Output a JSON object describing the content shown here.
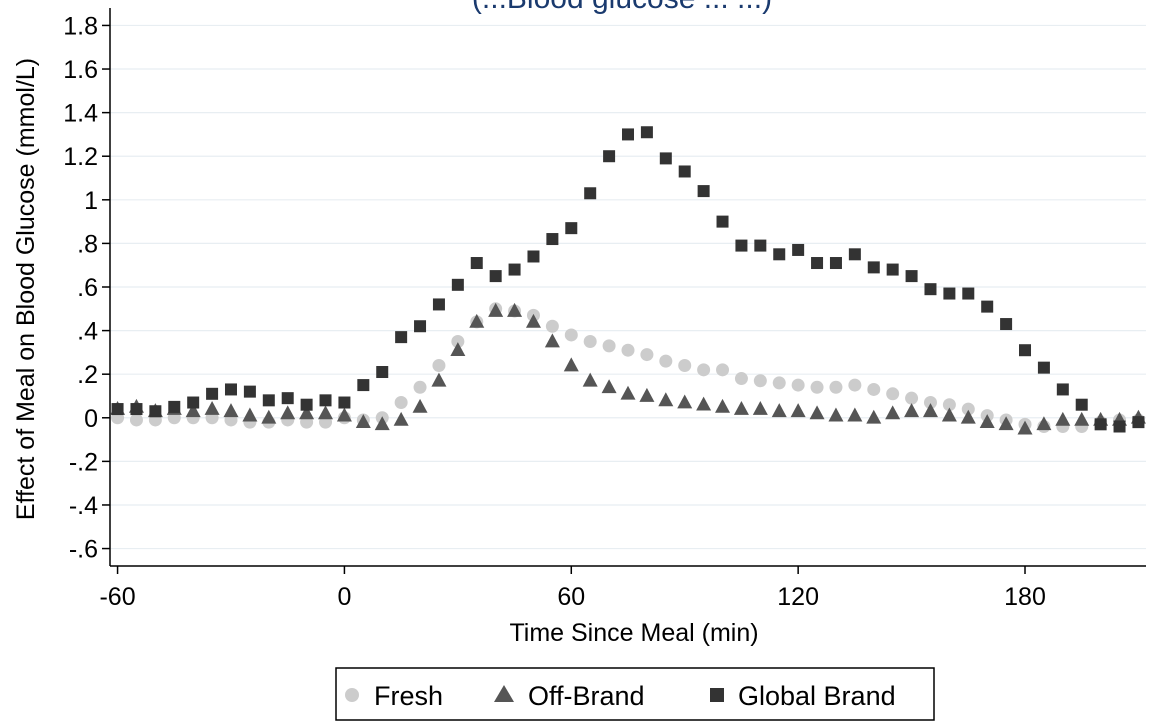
{
  "chart_data": {
    "type": "scatter",
    "title": "(...Blood glucose ... ...)",
    "xlabel": "Time Since Meal (min)",
    "ylabel": "Effect of Meal on Blood Glucose (mmol/L)",
    "xlim": [
      -62,
      212
    ],
    "ylim": [
      -0.68,
      1.88
    ],
    "xticks": [
      {
        "value": -60,
        "label": "-60"
      },
      {
        "value": 0,
        "label": "0"
      },
      {
        "value": 60,
        "label": "60"
      },
      {
        "value": 120,
        "label": "120"
      },
      {
        "value": 180,
        "label": "180"
      }
    ],
    "yticks": [
      {
        "value": 1.8,
        "label": "1.8"
      },
      {
        "value": 1.6,
        "label": "1.6"
      },
      {
        "value": 1.4,
        "label": "1.4"
      },
      {
        "value": 1.2,
        "label": "1.2"
      },
      {
        "value": 1.0,
        "label": "1"
      },
      {
        "value": 0.8,
        "label": ".8"
      },
      {
        "value": 0.6,
        "label": ".6"
      },
      {
        "value": 0.4,
        "label": ".4"
      },
      {
        "value": 0.2,
        "label": ".2"
      },
      {
        "value": 0.0,
        "label": "0"
      },
      {
        "value": -0.2,
        "label": "-.2"
      },
      {
        "value": -0.4,
        "label": "-.4"
      },
      {
        "value": -0.6,
        "label": "-.6"
      }
    ],
    "grid": true,
    "legend_position": "bottom",
    "x": [
      -60,
      -55,
      -50,
      -45,
      -40,
      -35,
      -30,
      -25,
      -20,
      -15,
      -10,
      -5,
      0,
      5,
      10,
      15,
      20,
      25,
      30,
      35,
      40,
      45,
      50,
      55,
      60,
      65,
      70,
      75,
      80,
      85,
      90,
      95,
      100,
      105,
      110,
      115,
      120,
      125,
      130,
      135,
      140,
      145,
      150,
      155,
      160,
      165,
      170,
      175,
      180,
      185,
      190,
      195,
      200,
      205,
      210
    ],
    "series": [
      {
        "name": "Fresh",
        "marker": "circle",
        "color": "#cccccc",
        "values": [
          0.0,
          -0.01,
          -0.01,
          0.0,
          0.0,
          0.0,
          -0.01,
          -0.02,
          -0.02,
          -0.01,
          -0.02,
          -0.02,
          0.0,
          -0.01,
          0.0,
          0.07,
          0.14,
          0.24,
          0.35,
          0.44,
          0.5,
          0.49,
          0.47,
          0.42,
          0.38,
          0.35,
          0.33,
          0.31,
          0.29,
          0.26,
          0.24,
          0.22,
          0.22,
          0.18,
          0.17,
          0.16,
          0.15,
          0.14,
          0.14,
          0.15,
          0.13,
          0.11,
          0.09,
          0.07,
          0.06,
          0.04,
          0.01,
          -0.01,
          -0.03,
          -0.04,
          -0.04,
          -0.04,
          -0.02,
          -0.01,
          -0.01
        ]
      },
      {
        "name": "Off-Brand",
        "marker": "triangle",
        "color": "#555555",
        "values": [
          0.04,
          0.05,
          0.03,
          0.04,
          0.03,
          0.04,
          0.03,
          0.01,
          0.0,
          0.02,
          0.02,
          0.02,
          0.01,
          -0.02,
          -0.03,
          -0.01,
          0.05,
          0.17,
          0.31,
          0.44,
          0.49,
          0.49,
          0.44,
          0.35,
          0.24,
          0.17,
          0.14,
          0.11,
          0.1,
          0.08,
          0.07,
          0.06,
          0.05,
          0.04,
          0.04,
          0.03,
          0.03,
          0.02,
          0.01,
          0.01,
          0.0,
          0.02,
          0.03,
          0.03,
          0.01,
          0.0,
          -0.02,
          -0.03,
          -0.05,
          -0.03,
          -0.01,
          -0.01,
          -0.01,
          -0.01,
          0.0
        ]
      },
      {
        "name": "Global Brand",
        "marker": "square",
        "color": "#333333",
        "values": [
          0.04,
          0.04,
          0.03,
          0.05,
          0.07,
          0.11,
          0.13,
          0.12,
          0.08,
          0.09,
          0.06,
          0.08,
          0.07,
          0.15,
          0.21,
          0.37,
          0.42,
          0.52,
          0.61,
          0.71,
          0.65,
          0.68,
          0.74,
          0.82,
          0.87,
          1.03,
          1.2,
          1.3,
          1.31,
          1.19,
          1.13,
          1.04,
          0.9,
          0.79,
          0.79,
          0.75,
          0.77,
          0.71,
          0.71,
          0.75,
          0.69,
          0.68,
          0.65,
          0.59,
          0.57,
          0.57,
          0.51,
          0.43,
          0.31,
          0.23,
          0.13,
          0.06,
          -0.03,
          -0.04,
          -0.02
        ]
      }
    ]
  }
}
